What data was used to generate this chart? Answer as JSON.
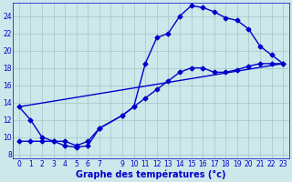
{
  "title": "Graphe des températures (°c)",
  "bg_color": "#cce8ea",
  "grid_color": "#aacccc",
  "line_color": "#0000cc",
  "xlim": [
    -0.5,
    23.5
  ],
  "ylim": [
    7.5,
    25.5
  ],
  "yticks": [
    8,
    10,
    12,
    14,
    16,
    18,
    20,
    22,
    24
  ],
  "line1_x": [
    0,
    1,
    2,
    3,
    4,
    5,
    6,
    7,
    9,
    10,
    11,
    12,
    13,
    14,
    15,
    16,
    17,
    18,
    19,
    20,
    21,
    22,
    23
  ],
  "line1_y": [
    13.5,
    12.0,
    10.0,
    9.5,
    9.0,
    8.8,
    9.0,
    11.0,
    12.5,
    13.5,
    18.5,
    21.5,
    22.0,
    24.0,
    25.2,
    25.0,
    24.5,
    23.8,
    23.5,
    22.5,
    20.5,
    19.5,
    18.5
  ],
  "line2_x": [
    0,
    1,
    2,
    3,
    4,
    5,
    6,
    7,
    9,
    10,
    11,
    12,
    13,
    14,
    15,
    16,
    17,
    18,
    19,
    20,
    21,
    22,
    23
  ],
  "line2_y": [
    9.5,
    9.5,
    9.5,
    9.5,
    9.5,
    9.0,
    9.5,
    11.0,
    12.5,
    13.5,
    14.5,
    15.5,
    16.5,
    17.5,
    18.0,
    18.0,
    17.5,
    17.5,
    17.8,
    18.2,
    18.5,
    18.5,
    18.5
  ],
  "line3_x": [
    0,
    23
  ],
  "line3_y": [
    13.5,
    18.5
  ],
  "marker": "D",
  "markersize": 2.5,
  "linewidth": 1.0,
  "tick_fontsize": 5.5,
  "xlabel_fontsize": 7
}
